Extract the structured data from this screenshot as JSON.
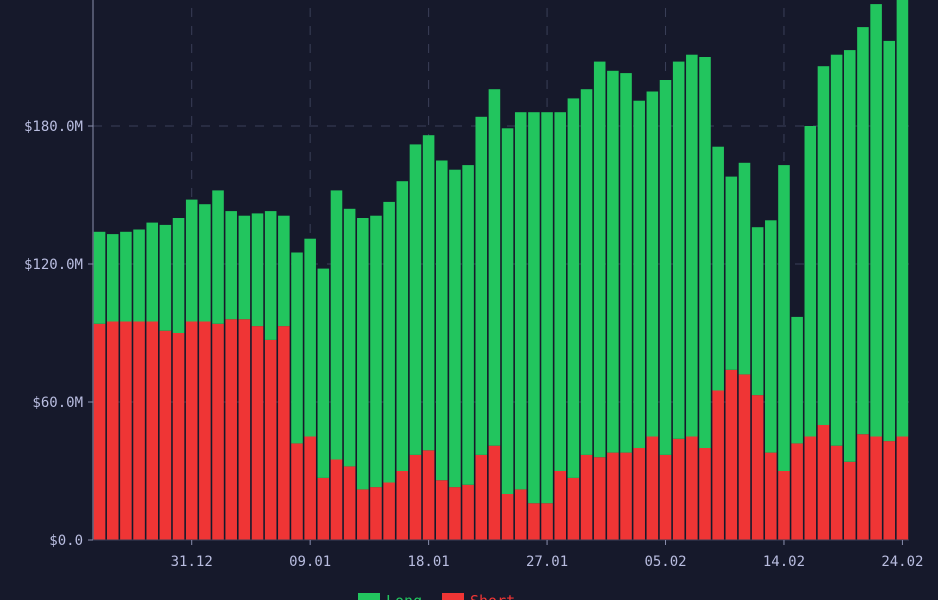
{
  "chart_data": {
    "type": "bar",
    "stacked": true,
    "title": "",
    "xlabel": "",
    "ylabel": "",
    "ylim": [
      0,
      240
    ],
    "y_unit": "$M",
    "y_ticks": [
      {
        "value": 0,
        "label": "$0.0"
      },
      {
        "value": 60,
        "label": "$60.0M"
      },
      {
        "value": 120,
        "label": "$120.0M"
      },
      {
        "value": 180,
        "label": "$180.0M"
      }
    ],
    "x_ticks": [
      {
        "index": 7,
        "label": "31.12"
      },
      {
        "index": 16,
        "label": "09.01"
      },
      {
        "index": 25,
        "label": "18.01"
      },
      {
        "index": 34,
        "label": "27.01"
      },
      {
        "index": 43,
        "label": "05.02"
      },
      {
        "index": 52,
        "label": "14.02"
      },
      {
        "index": 61,
        "label": "24.02"
      }
    ],
    "grid": true,
    "legend_position": "bottom",
    "series": [
      {
        "name": "Short",
        "color": "#ef3535",
        "values": [
          94,
          95,
          95,
          95,
          95,
          91,
          90,
          95,
          95,
          94,
          96,
          96,
          93,
          87,
          93,
          42,
          45,
          27,
          35,
          32,
          22,
          23,
          25,
          30,
          37,
          39,
          26,
          23,
          24,
          37,
          41,
          20,
          22,
          16,
          16,
          30,
          27,
          37,
          36,
          38,
          38,
          40,
          45,
          37,
          44,
          45,
          40,
          65,
          74,
          72,
          63,
          38,
          30,
          42,
          45,
          50,
          41,
          34,
          46,
          45,
          43,
          45
        ]
      },
      {
        "name": "Long",
        "color": "#22c55e",
        "values": [
          40,
          38,
          39,
          40,
          43,
          46,
          50,
          53,
          51,
          58,
          47,
          45,
          49,
          56,
          48,
          83,
          86,
          91,
          117,
          112,
          118,
          118,
          122,
          126,
          135,
          137,
          139,
          138,
          139,
          147,
          155,
          159,
          164,
          170,
          170,
          156,
          165,
          159,
          172,
          166,
          165,
          151,
          150,
          163,
          164,
          166,
          170,
          106,
          84,
          92,
          73,
          101,
          133,
          55,
          135,
          156,
          170,
          179,
          177,
          188,
          174,
          190
        ]
      }
    ]
  }
}
